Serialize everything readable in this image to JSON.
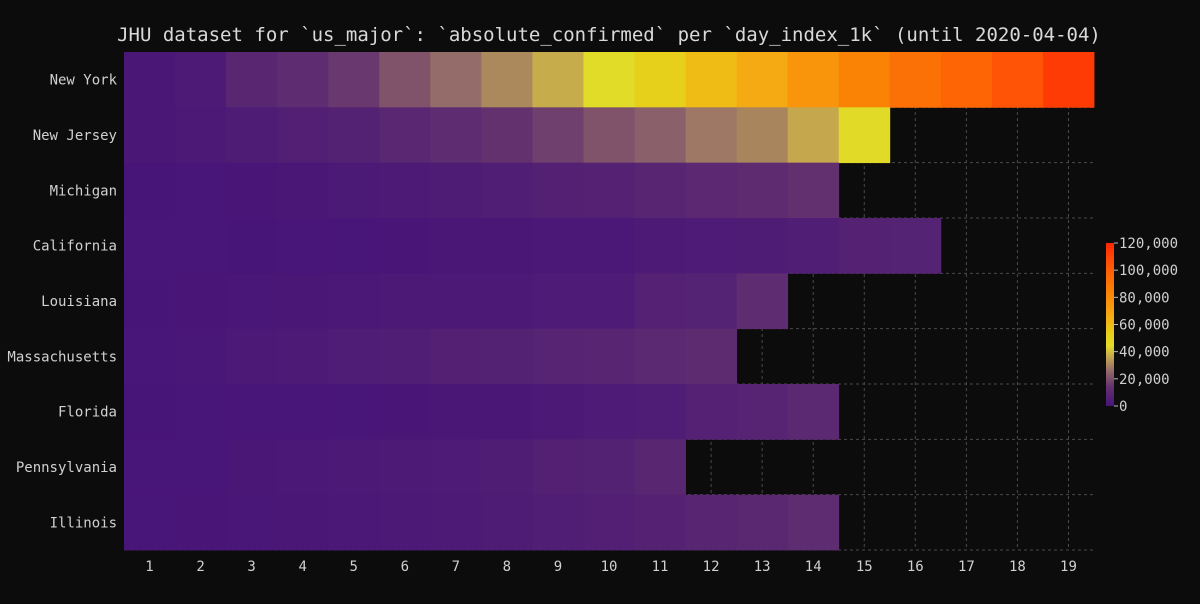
{
  "chart_data": {
    "type": "heatmap",
    "title": "JHU dataset for `us_major`: `absolute_confirmed` per `day_index_1k` (until 2020-04-04)",
    "xlabel": "",
    "ylabel": "",
    "x": [
      1,
      2,
      3,
      4,
      5,
      6,
      7,
      8,
      9,
      10,
      11,
      12,
      13,
      14,
      15,
      16,
      17,
      18,
      19
    ],
    "y": [
      "New York",
      "New Jersey",
      "Michigan",
      "California",
      "Louisiana",
      "Massachusetts",
      "Florida",
      "Pennsylvania",
      "Illinois"
    ],
    "values": [
      [
        1300,
        3000,
        9000,
        11500,
        15500,
        21000,
        26000,
        31000,
        37000,
        44500,
        52000,
        60000,
        66500,
        75500,
        84000,
        91500,
        97000,
        104000,
        113000
      ],
      [
        1300,
        2300,
        3800,
        5500,
        6700,
        9200,
        11500,
        14000,
        17000,
        21000,
        23500,
        28000,
        30500,
        36500,
        45000,
        null,
        null,
        null,
        null
      ],
      [
        50,
        400,
        1000,
        1400,
        2200,
        3200,
        4000,
        4700,
        5800,
        6800,
        8200,
        9700,
        11200,
        13200,
        null,
        null,
        null,
        null,
        null
      ],
      [
        300,
        250,
        120,
        300,
        600,
        900,
        1300,
        1500,
        1800,
        2000,
        3000,
        3500,
        3900,
        5000,
        6800,
        7000,
        null,
        null,
        null
      ],
      [
        200,
        800,
        1200,
        1400,
        1900,
        2300,
        2500,
        2700,
        3300,
        3600,
        6400,
        7000,
        11500,
        null,
        null,
        null,
        null,
        null,
        null
      ],
      [
        400,
        1200,
        2500,
        3000,
        4200,
        4900,
        5800,
        6500,
        7800,
        8200,
        10000,
        11000,
        null,
        null,
        null,
        null,
        null,
        null,
        null
      ],
      [
        180,
        300,
        400,
        520,
        700,
        900,
        1300,
        1600,
        2500,
        3400,
        4100,
        6400,
        7800,
        10000,
        null,
        null,
        null,
        null,
        null
      ],
      [
        250,
        700,
        1300,
        1800,
        2300,
        2800,
        3500,
        4300,
        5800,
        6500,
        9000,
        null,
        null,
        null,
        null,
        null,
        null,
        null,
        null
      ],
      [
        300,
        1000,
        1200,
        1500,
        2000,
        2300,
        3100,
        3700,
        4600,
        5400,
        6800,
        8000,
        9500,
        11500,
        null,
        null,
        null,
        null,
        null
      ]
    ],
    "colorbar": {
      "range": [
        0,
        120000
      ],
      "tick_values": [
        0,
        20000,
        40000,
        60000,
        80000,
        100000,
        120000
      ],
      "tick_labels": [
        "0",
        "20,000",
        "40,000",
        "60,000",
        "80,000",
        "100,000",
        "120,000"
      ]
    },
    "grid": true,
    "grid_style": "dashed",
    "missing_color": "#0c0c0c"
  }
}
